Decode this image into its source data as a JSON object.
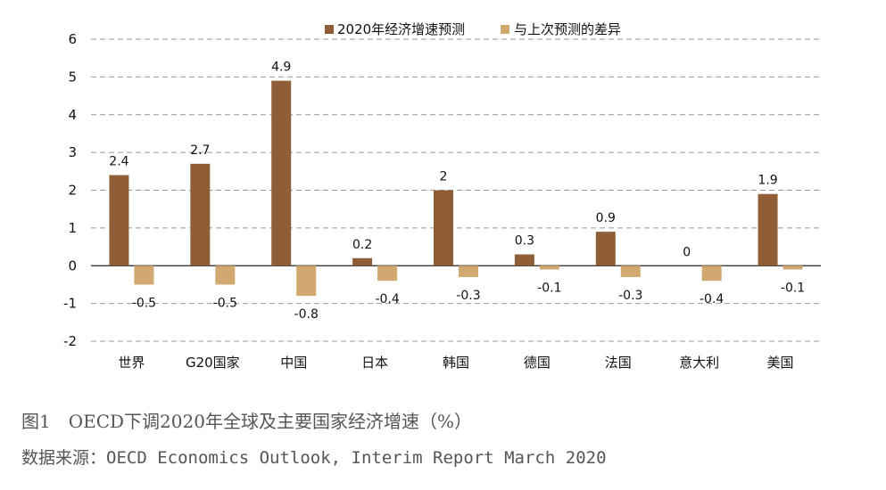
{
  "chart_data": {
    "type": "bar",
    "categories": [
      "世界",
      "G20国家",
      "中国",
      "日本",
      "韩国",
      "德国",
      "法国",
      "意大利",
      "美国"
    ],
    "series": [
      {
        "name": "2020年经济增速预测",
        "values": [
          2.4,
          2.7,
          4.9,
          0.2,
          2,
          0.3,
          0.9,
          0,
          1.9
        ],
        "labels": [
          "2.4",
          "2.7",
          "4.9",
          "0.2",
          "2",
          "0.3",
          "0.9",
          "0",
          "1.9"
        ]
      },
      {
        "name": "与上次预测的差异",
        "values": [
          -0.5,
          -0.5,
          -0.8,
          -0.4,
          -0.3,
          -0.1,
          -0.3,
          -0.4,
          -0.1
        ],
        "labels": [
          "-0.5",
          "-0.5",
          "-0.8",
          "-0.4",
          "-0.3",
          "-0.1",
          "-0.3",
          "-0.4",
          "-0.1"
        ]
      }
    ],
    "yticks": [
      6,
      5,
      4,
      3,
      2,
      1,
      0,
      -1,
      -2
    ],
    "ytick_labels": [
      "6",
      "5",
      "4",
      "3",
      "2",
      "1",
      "0",
      "-1",
      "-2"
    ],
    "ylim": [
      -2,
      6
    ],
    "grid": true,
    "legend": "top"
  },
  "colors": {
    "series1": "#8f5e36",
    "series2": "#d0a870",
    "grid": "#999999",
    "axis": "#222222"
  },
  "caption": {
    "figure": "图1　OECD下调2020年全球及主要国家经济增速（%）",
    "source": "数据来源：OECD Economics Outlook, Interim Report March 2020"
  }
}
